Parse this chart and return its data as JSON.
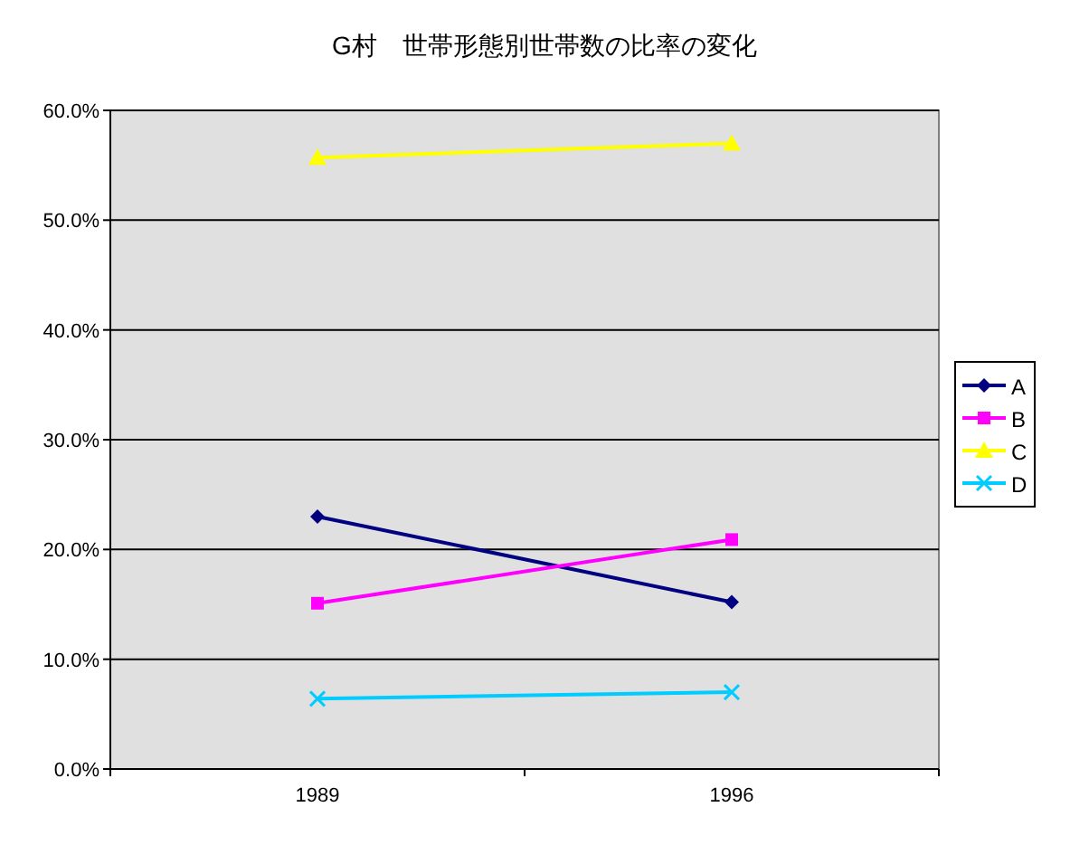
{
  "chart_data": {
    "type": "line",
    "title": "G村　世帯形態別世帯数の比率の変化",
    "categories": [
      "1989",
      "1996"
    ],
    "series": [
      {
        "name": "A",
        "color": "#000080",
        "values": [
          23.0,
          15.2
        ],
        "marker": "diamond"
      },
      {
        "name": "B",
        "color": "#ff00ff",
        "values": [
          15.1,
          20.9
        ],
        "marker": "square"
      },
      {
        "name": "C",
        "color": "#ffff00",
        "values": [
          55.7,
          57.0
        ],
        "marker": "triangle"
      },
      {
        "name": "D",
        "color": "#00ccff",
        "values": [
          6.4,
          7.0
        ],
        "marker": "cross"
      }
    ],
    "ylim": [
      0,
      60
    ],
    "yticks": [
      {
        "value": 0,
        "label": "0.0%"
      },
      {
        "value": 10,
        "label": "10.0%"
      },
      {
        "value": 20,
        "label": "20.0%"
      },
      {
        "value": 30,
        "label": "30.0%"
      },
      {
        "value": 40,
        "label": "40.0%"
      },
      {
        "value": 50,
        "label": "50.0%"
      },
      {
        "value": 60,
        "label": "60.0%"
      }
    ],
    "grid": "y",
    "legend": "right",
    "line_style": "solid"
  }
}
